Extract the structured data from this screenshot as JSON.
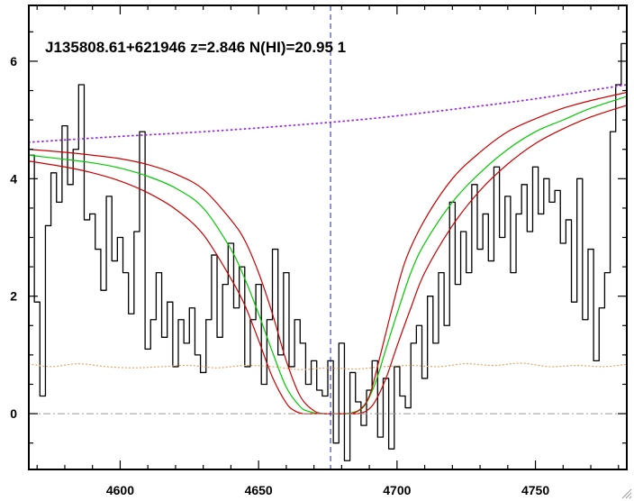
{
  "chart_data": {
    "type": "line",
    "title": "J135808.61+621946 z=2.846 N(HI)=20.95 1",
    "xlabel": "",
    "ylabel": "",
    "xlim": [
      4567,
      4783
    ],
    "ylim": [
      -0.95,
      6.95
    ],
    "x_ticks": [
      4600,
      4650,
      4700,
      4750
    ],
    "y_ticks": [
      0,
      2,
      4,
      6
    ],
    "line_center": 4676,
    "grid": false,
    "legend": "none",
    "colors": {
      "flux": "#000000",
      "error": "#e8a060",
      "continuum": "#9a2be2",
      "model_best": "#00cc00",
      "model_bounds": "#cc0000",
      "center_line": "#2222cc",
      "zero_line": "#999999"
    },
    "series": [
      {
        "role": "flux",
        "x": [
          4568,
          4570,
          4572,
          4574,
          4576,
          4578,
          4580,
          4582,
          4584,
          4586,
          4588,
          4590,
          4592,
          4594,
          4596,
          4598,
          4600,
          4602,
          4604,
          4606,
          4608,
          4610,
          4612,
          4614,
          4616,
          4618,
          4620,
          4622,
          4624,
          4626,
          4628,
          4630,
          4632,
          4634,
          4636,
          4638,
          4640,
          4642,
          4644,
          4646,
          4648,
          4650,
          4652,
          4654,
          4656,
          4658,
          4660,
          4662,
          4664,
          4666,
          4668,
          4670,
          4672,
          4674,
          4676,
          4678,
          4680,
          4682,
          4684,
          4686,
          4688,
          4690,
          4692,
          4694,
          4696,
          4698,
          4700,
          4702,
          4704,
          4706,
          4708,
          4710,
          4712,
          4714,
          4716,
          4718,
          4720,
          4722,
          4724,
          4726,
          4728,
          4730,
          4732,
          4734,
          4736,
          4738,
          4740,
          4742,
          4744,
          4746,
          4748,
          4750,
          4752,
          4754,
          4756,
          4758,
          4760,
          4762,
          4764,
          4766,
          4768,
          4770,
          4772,
          4774,
          4776,
          4778,
          4780,
          4782
        ],
        "y": [
          4.4,
          1.9,
          0.3,
          3.2,
          4.1,
          3.6,
          4.9,
          3.9,
          4.5,
          5.6,
          3.3,
          3.4,
          2.8,
          2.1,
          3.7,
          2.6,
          3.0,
          2.4,
          1.7,
          3.1,
          4.8,
          1.1,
          1.6,
          2.4,
          1.3,
          1.9,
          0.8,
          1.6,
          1.2,
          1.8,
          1.0,
          0.7,
          1.6,
          2.7,
          1.3,
          2.2,
          2.9,
          1.8,
          2.5,
          0.8,
          1.6,
          2.2,
          0.5,
          1.6,
          2.8,
          1.0,
          2.4,
          0.8,
          1.6,
          1.2,
          0.5,
          0.9,
          0.4,
          0.3,
          0.9,
          -0.5,
          1.2,
          -0.8,
          0.7,
          0.2,
          -0.2,
          0.4,
          0.9,
          -0.4,
          0.6,
          -0.6,
          0.8,
          0.3,
          0.1,
          1.2,
          1.5,
          0.6,
          2.0,
          1.2,
          2.4,
          1.5,
          3.6,
          2.2,
          3.1,
          2.4,
          3.9,
          2.8,
          3.4,
          2.6,
          4.2,
          3.0,
          3.7,
          2.4,
          3.4,
          3.9,
          3.1,
          4.2,
          3.4,
          4.0,
          3.6,
          3.8,
          2.9,
          3.3,
          1.9,
          4.0,
          1.6,
          2.8,
          0.9,
          1.8,
          2.4,
          4.8,
          5.6,
          6.3
        ]
      },
      {
        "role": "error",
        "x": [
          4567,
          4575,
          4585,
          4595,
          4605,
          4615,
          4625,
          4635,
          4645,
          4655,
          4665,
          4675,
          4685,
          4695,
          4705,
          4715,
          4725,
          4735,
          4745,
          4755,
          4765,
          4775,
          4783
        ],
        "y": [
          0.85,
          0.8,
          0.85,
          0.8,
          0.78,
          0.8,
          0.82,
          0.78,
          0.82,
          0.8,
          0.75,
          0.78,
          0.76,
          0.8,
          0.82,
          0.8,
          0.85,
          0.82,
          0.86,
          0.8,
          0.82,
          0.8,
          0.84
        ]
      },
      {
        "role": "continuum",
        "x": [
          4567,
          4600,
          4630,
          4660,
          4690,
          4720,
          4750,
          4783
        ],
        "y": [
          4.62,
          4.72,
          4.8,
          4.9,
          5.02,
          5.18,
          5.36,
          5.6
        ]
      },
      {
        "role": "model_best",
        "x": [
          4567,
          4580,
          4590,
          4600,
          4610,
          4620,
          4630,
          4640,
          4645,
          4650,
          4655,
          4660,
          4665,
          4668,
          4672,
          4676,
          4680,
          4684,
          4688,
          4692,
          4696,
          4700,
          4705,
          4710,
          4720,
          4730,
          4740,
          4750,
          4760,
          4770,
          4783
        ],
        "y": [
          4.4,
          4.33,
          4.27,
          4.18,
          4.04,
          3.84,
          3.5,
          2.8,
          2.3,
          1.7,
          1.05,
          0.45,
          0.12,
          0.04,
          0.0,
          0.0,
          0.0,
          0.02,
          0.12,
          0.5,
          1.1,
          1.7,
          2.4,
          2.9,
          3.6,
          4.1,
          4.5,
          4.8,
          5.0,
          5.2,
          5.4
        ]
      },
      {
        "role": "model_upper",
        "x": [
          4567,
          4580,
          4590,
          4600,
          4610,
          4620,
          4630,
          4640,
          4645,
          4650,
          4655,
          4660,
          4665,
          4670,
          4674,
          4678,
          4682,
          4686,
          4690,
          4694,
          4698,
          4703,
          4710,
          4720,
          4730,
          4740,
          4750,
          4760,
          4770,
          4783
        ],
        "y": [
          4.5,
          4.45,
          4.4,
          4.34,
          4.24,
          4.08,
          3.82,
          3.3,
          2.95,
          2.4,
          1.7,
          0.9,
          0.3,
          0.05,
          0.0,
          0.0,
          0.0,
          0.05,
          0.3,
          1.0,
          1.75,
          2.6,
          3.3,
          4.0,
          4.45,
          4.8,
          5.02,
          5.2,
          5.33,
          5.47
        ]
      },
      {
        "role": "model_lower",
        "x": [
          4567,
          4580,
          4590,
          4600,
          4610,
          4620,
          4630,
          4640,
          4645,
          4650,
          4655,
          4660,
          4663,
          4666,
          4670,
          4676,
          4682,
          4686,
          4689,
          4692,
          4696,
          4700,
          4705,
          4710,
          4720,
          4730,
          4740,
          4750,
          4760,
          4770,
          4783
        ],
        "y": [
          4.3,
          4.2,
          4.1,
          3.96,
          3.76,
          3.48,
          3.05,
          2.3,
          1.85,
          1.25,
          0.62,
          0.18,
          0.05,
          0.0,
          0.0,
          0.0,
          0.0,
          0.0,
          0.05,
          0.2,
          0.6,
          1.15,
          1.8,
          2.4,
          3.2,
          3.8,
          4.25,
          4.6,
          4.85,
          5.05,
          5.25
        ]
      }
    ]
  }
}
